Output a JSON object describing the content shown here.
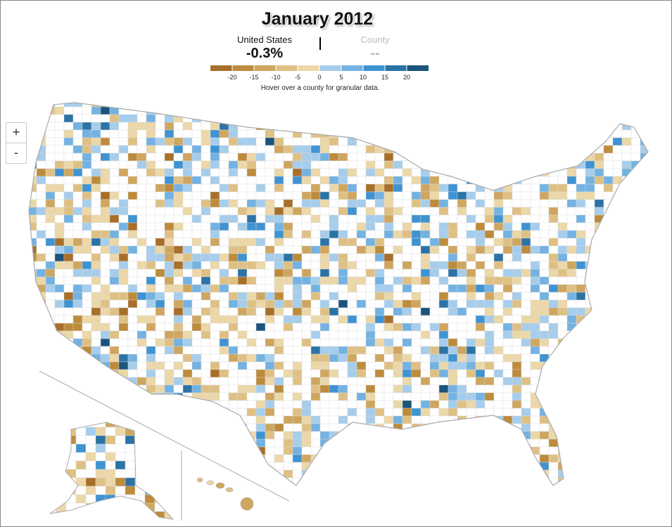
{
  "header": {
    "title": "January 2012"
  },
  "summary": {
    "us_label": "United States",
    "us_value": "-0.3%",
    "county_label": "County",
    "county_value": "--"
  },
  "legend": {
    "ticks": [
      -20,
      -15,
      -10,
      -5,
      0,
      5,
      10,
      15,
      20
    ],
    "colors": [
      "#a86f2a",
      "#bd8b3c",
      "#cfa65f",
      "#dfc084",
      "#ebd7a8",
      "#a6cdeb",
      "#73b2e2",
      "#3f93d1",
      "#2b73a6",
      "#1b547c"
    ],
    "hint": "Hover over a county for granular data."
  },
  "controls": {
    "zoom_in": "+",
    "zoom_out": "-"
  }
}
